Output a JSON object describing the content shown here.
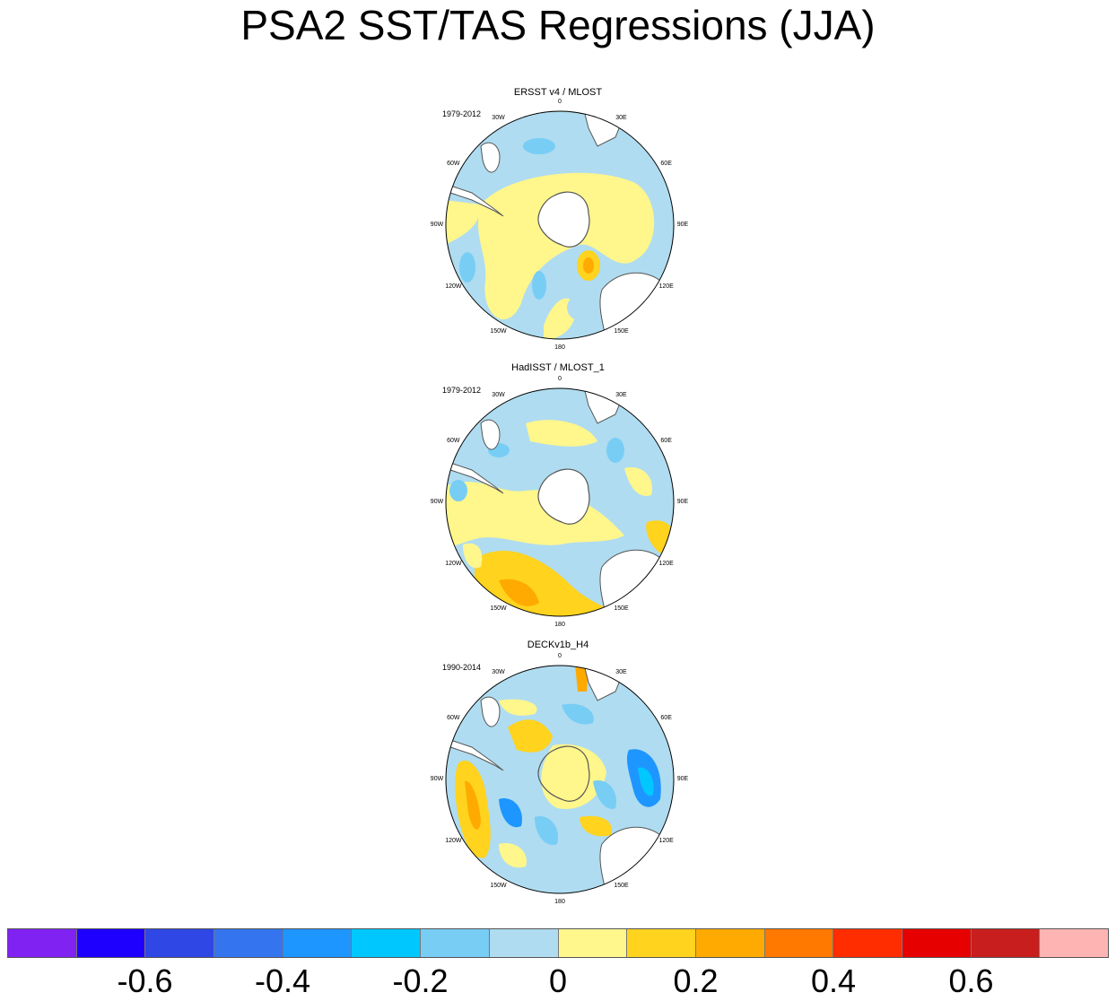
{
  "title": "PSA2 SST/TAS Regressions (JJA)",
  "panels": [
    {
      "title": "ERSST v4 / MLOST",
      "period": "1979-2012"
    },
    {
      "title": "HadISST / MLOST_1",
      "period": "1979-2012"
    },
    {
      "title": "DECKv1b_H4",
      "period": "1990-2014"
    }
  ],
  "longitude_labels": [
    "0",
    "30E",
    "60E",
    "90E",
    "120E",
    "150E",
    "180",
    "150W",
    "120W",
    "90W",
    "60W",
    "30W"
  ],
  "colorbar": {
    "colors": [
      "#7f22f2",
      "#1e00ff",
      "#2e47e5",
      "#3474ee",
      "#1e96ff",
      "#00c8ff",
      "#78cdf5",
      "#afdcf0",
      "#fff68c",
      "#ffd31e",
      "#ffaa00",
      "#ff7800",
      "#ff2d00",
      "#e60000",
      "#c81e1e",
      "#ffb4b4"
    ],
    "tick_labels": [
      "-0.6",
      "-0.4",
      "-0.2",
      "0",
      "0.2",
      "0.4",
      "0.6"
    ]
  },
  "map_colors": {
    "ocean_background": "#afdcf0",
    "land": "#ffffff",
    "coast": "#555555"
  }
}
